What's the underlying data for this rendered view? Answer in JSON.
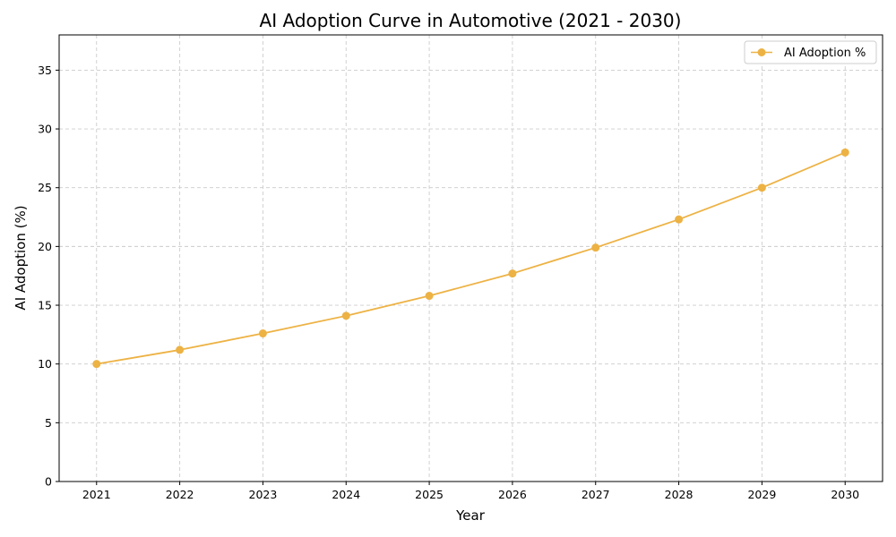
{
  "chart_data": {
    "type": "line",
    "title": "AI Adoption Curve in Automotive (2021 - 2030)",
    "xlabel": "Year",
    "ylabel": "AI Adoption (%)",
    "x": [
      2021,
      2022,
      2023,
      2024,
      2025,
      2026,
      2027,
      2028,
      2029,
      2030
    ],
    "series": [
      {
        "name": "AI Adoption %",
        "values": [
          10.0,
          11.2,
          12.6,
          14.1,
          15.8,
          17.7,
          19.9,
          22.3,
          25.0,
          28.0
        ],
        "color": "#EDB244",
        "marker": "circle"
      }
    ],
    "xlim": [
      2020.55,
      2030.45
    ],
    "ylim": [
      0,
      38
    ],
    "yticks": [
      0,
      5,
      10,
      15,
      20,
      25,
      30,
      35
    ],
    "xticks": [
      2021,
      2022,
      2023,
      2024,
      2025,
      2026,
      2027,
      2028,
      2029,
      2030
    ],
    "grid": true,
    "legend_position": "top-right"
  }
}
